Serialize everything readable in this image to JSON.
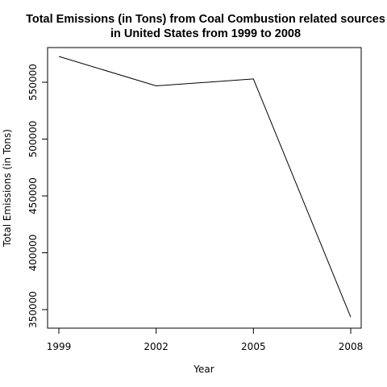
{
  "chart_data": {
    "type": "line",
    "title_line1": "Total Emissions (in Tons) from Coal Combustion related sources",
    "title_line2": "in United States from 1999 to 2008",
    "xlabel": "Year",
    "ylabel": "Total Emissions (in Tons)",
    "x": [
      "1999",
      "2002",
      "2005",
      "2008"
    ],
    "y": [
      572700,
      546800,
      552900,
      343400
    ],
    "xticks": [
      "1999",
      "2002",
      "2005",
      "2008"
    ],
    "yticks": [
      "350000",
      "400000",
      "450000",
      "500000",
      "550000"
    ],
    "ylim": [
      335000,
      581000
    ],
    "grid": false,
    "colors": {
      "line": "#000000",
      "frame": "#000000",
      "background": "#ffffff"
    }
  }
}
